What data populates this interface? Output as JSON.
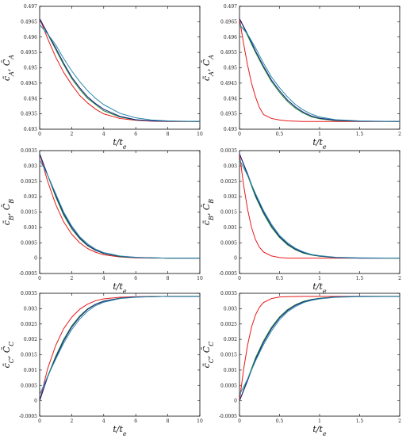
{
  "chart_data": [
    {
      "type": "line",
      "xlabel": "t/t_e",
      "ylabel": "c̄_A, C̄_A",
      "xlim": [
        0,
        10
      ],
      "ylim": [
        0.493,
        0.497
      ],
      "xticks": [
        "0",
        "2",
        "4",
        "6",
        "8",
        "10"
      ],
      "yticks": [
        "0.493",
        "0.4935",
        "0.494",
        "0.4945",
        "0.495",
        "0.4955",
        "0.496",
        "0.4965",
        "0.497"
      ],
      "series": [
        {
          "color": "#e8191a",
          "x": [
            0,
            0.5,
            1,
            1.5,
            2,
            2.5,
            3,
            3.5,
            4,
            5,
            6,
            7,
            8,
            10
          ],
          "values": [
            0.4966,
            0.49595,
            0.49535,
            0.49485,
            0.49445,
            0.4941,
            0.49385,
            0.49365,
            0.4935,
            0.49335,
            0.49329,
            0.49326,
            0.49325,
            0.49325
          ]
        },
        {
          "color": "#1a8c2a",
          "x": [
            0,
            0.5,
            1,
            1.5,
            2,
            2.5,
            3,
            3.5,
            4,
            5,
            6,
            7,
            8,
            10
          ],
          "values": [
            0.4966,
            0.4961,
            0.4956,
            0.4951,
            0.49465,
            0.4943,
            0.494,
            0.4938,
            0.4936,
            0.4934,
            0.4933,
            0.49327,
            0.49326,
            0.49325
          ]
        },
        {
          "color": "#1a1a8c",
          "x": [
            0,
            0.5,
            1,
            1.5,
            2,
            2.5,
            3,
            3.5,
            4,
            5,
            6,
            7,
            8,
            10
          ],
          "values": [
            0.4966,
            0.49612,
            0.49565,
            0.49515,
            0.4947,
            0.49435,
            0.49405,
            0.49383,
            0.49365,
            0.49342,
            0.49331,
            0.49327,
            0.49326,
            0.49325
          ]
        },
        {
          "color": "#2a8aa8",
          "x": [
            0,
            0.5,
            1,
            1.5,
            2,
            2.5,
            3,
            3.5,
            4,
            5,
            6,
            7,
            8,
            10
          ],
          "values": [
            0.4964,
            0.4961,
            0.49575,
            0.4953,
            0.4949,
            0.49455,
            0.49425,
            0.494,
            0.4938,
            0.49352,
            0.49337,
            0.4933,
            0.49327,
            0.49325
          ]
        }
      ]
    },
    {
      "type": "line",
      "xlabel": "t/t_e",
      "ylabel": "c̄_A, C̄_A",
      "xlim": [
        0,
        2
      ],
      "ylim": [
        0.493,
        0.497
      ],
      "xticks": [
        "0",
        "0.5",
        "1",
        "1.5",
        "2"
      ],
      "yticks": [
        "0.493",
        "0.4935",
        "0.494",
        "0.4945",
        "0.495",
        "0.4955",
        "0.496",
        "0.4965",
        "0.497"
      ],
      "series": [
        {
          "color": "#e8191a",
          "x": [
            0,
            0.05,
            0.1,
            0.15,
            0.2,
            0.25,
            0.3,
            0.4,
            0.5,
            0.6,
            0.8,
            1,
            1.5,
            2
          ],
          "values": [
            0.4966,
            0.4958,
            0.4951,
            0.4945,
            0.49405,
            0.4937,
            0.49348,
            0.49335,
            0.4933,
            0.49327,
            0.49325,
            0.49325,
            0.49325,
            0.49325
          ]
        },
        {
          "color": "#1a8c2a",
          "x": [
            0,
            0.1,
            0.2,
            0.3,
            0.4,
            0.5,
            0.6,
            0.7,
            0.8,
            0.9,
            1,
            1.2,
            1.5,
            2
          ],
          "values": [
            0.4966,
            0.49605,
            0.4955,
            0.495,
            0.49455,
            0.4942,
            0.4939,
            0.49368,
            0.49352,
            0.4934,
            0.49334,
            0.49328,
            0.49326,
            0.49325
          ]
        },
        {
          "color": "#1a1a8c",
          "x": [
            0,
            0.1,
            0.2,
            0.3,
            0.4,
            0.5,
            0.6,
            0.7,
            0.8,
            0.9,
            1,
            1.2,
            1.5,
            2
          ],
          "values": [
            0.4966,
            0.4961,
            0.49555,
            0.49505,
            0.4946,
            0.49425,
            0.49395,
            0.49372,
            0.49355,
            0.49343,
            0.49336,
            0.49329,
            0.49326,
            0.49325
          ]
        },
        {
          "color": "#2a8aa8",
          "x": [
            0,
            0.1,
            0.2,
            0.3,
            0.4,
            0.5,
            0.6,
            0.7,
            0.8,
            0.9,
            1,
            1.2,
            1.5,
            2
          ],
          "values": [
            0.4964,
            0.4961,
            0.49565,
            0.49515,
            0.4947,
            0.49435,
            0.49405,
            0.4938,
            0.49362,
            0.49349,
            0.4934,
            0.49331,
            0.49327,
            0.49325
          ]
        }
      ]
    },
    {
      "type": "line",
      "xlabel": "t/t_e",
      "ylabel": "c̄_B, C̄_B",
      "xlim": [
        0,
        10
      ],
      "ylim": [
        -0.0005,
        0.0035
      ],
      "xticks": [
        "0",
        "2",
        "4",
        "6",
        "8",
        "10"
      ],
      "yticks": [
        "-0.0005",
        "0",
        "0.0005",
        "0.001",
        "0.0015",
        "0.002",
        "0.0025",
        "0.003",
        "0.0035"
      ],
      "series": [
        {
          "color": "#e8191a",
          "x": [
            0,
            0.5,
            1,
            1.5,
            2,
            2.5,
            3,
            3.5,
            4,
            5,
            6,
            7,
            8,
            10
          ],
          "values": [
            0.0034,
            0.0025,
            0.00175,
            0.00118,
            0.00078,
            0.0005,
            0.00031,
            0.00019,
            0.00011,
            4e-05,
            1e-05,
            0,
            0,
            0
          ]
        },
        {
          "color": "#1a8c2a",
          "x": [
            0,
            0.5,
            1,
            1.5,
            2,
            2.5,
            3,
            3.5,
            4,
            5,
            6,
            7,
            8,
            10
          ],
          "values": [
            0.0034,
            0.0027,
            0.002,
            0.0014,
            0.00095,
            0.00063,
            0.0004,
            0.00025,
            0.00015,
            5e-05,
            2e-05,
            1e-05,
            0,
            0
          ]
        },
        {
          "color": "#1a1a8c",
          "x": [
            0,
            0.5,
            1,
            1.5,
            2,
            2.5,
            3,
            3.5,
            4,
            5,
            6,
            7,
            8,
            10
          ],
          "values": [
            0.0034,
            0.0027,
            0.00205,
            0.00145,
            0.001,
            0.00066,
            0.00042,
            0.00026,
            0.00016,
            6e-05,
            2e-05,
            1e-05,
            0,
            0
          ]
        },
        {
          "color": "#2a8aa8",
          "x": [
            0,
            0.5,
            1,
            1.5,
            2,
            2.5,
            3,
            3.5,
            4,
            5,
            6,
            7,
            8,
            10
          ],
          "values": [
            0.0032,
            0.0027,
            0.0021,
            0.0015,
            0.00105,
            0.0007,
            0.00046,
            0.00029,
            0.00018,
            7e-05,
            3e-05,
            1e-05,
            0,
            0
          ]
        }
      ]
    },
    {
      "type": "line",
      "xlabel": "t/t_e",
      "ylabel": "c̄_B, C̄_B",
      "xlim": [
        0,
        2
      ],
      "ylim": [
        -0.0005,
        0.0035
      ],
      "xticks": [
        "0",
        "0.5",
        "1",
        "1.5",
        "2"
      ],
      "yticks": [
        "-0.0005",
        "0",
        "0.0005",
        "0.001",
        "0.0015",
        "0.002",
        "0.0025",
        "0.003",
        "0.0035"
      ],
      "series": [
        {
          "color": "#e8191a",
          "x": [
            0,
            0.05,
            0.1,
            0.15,
            0.2,
            0.25,
            0.3,
            0.4,
            0.5,
            0.6,
            0.8,
            1,
            1.5,
            2
          ],
          "values": [
            0.0034,
            0.0024,
            0.0016,
            0.001,
            0.0006,
            0.00035,
            0.0002,
            7e-05,
            2e-05,
            0,
            0,
            0,
            0,
            0
          ]
        },
        {
          "color": "#1a8c2a",
          "x": [
            0,
            0.1,
            0.2,
            0.3,
            0.4,
            0.5,
            0.6,
            0.7,
            0.8,
            0.9,
            1,
            1.2,
            1.5,
            2
          ],
          "values": [
            0.0034,
            0.0027,
            0.002,
            0.00145,
            0.001,
            0.00067,
            0.00043,
            0.00027,
            0.00016,
            0.0001,
            6e-05,
            2e-05,
            0,
            0
          ]
        },
        {
          "color": "#1a1a8c",
          "x": [
            0,
            0.1,
            0.2,
            0.3,
            0.4,
            0.5,
            0.6,
            0.7,
            0.8,
            0.9,
            1,
            1.2,
            1.5,
            2
          ],
          "values": [
            0.0034,
            0.00275,
            0.00205,
            0.0015,
            0.00105,
            0.0007,
            0.00046,
            0.00029,
            0.00018,
            0.00011,
            7e-05,
            2e-05,
            0,
            0
          ]
        },
        {
          "color": "#2a8aa8",
          "x": [
            0,
            0.1,
            0.2,
            0.3,
            0.4,
            0.5,
            0.6,
            0.7,
            0.8,
            0.9,
            1,
            1.2,
            1.5,
            2
          ],
          "values": [
            0.0032,
            0.0027,
            0.0021,
            0.00155,
            0.0011,
            0.00074,
            0.0005,
            0.00032,
            0.0002,
            0.00012,
            8e-05,
            3e-05,
            1e-05,
            0
          ]
        }
      ]
    },
    {
      "type": "line",
      "xlabel": "t/t_e",
      "ylabel": "c̄_C, C̄_C",
      "xlim": [
        0,
        10
      ],
      "ylim": [
        -0.0005,
        0.0035
      ],
      "xticks": [
        "0",
        "2",
        "4",
        "6",
        "8",
        "10"
      ],
      "yticks": [
        "-0.0005",
        "0",
        "0.0005",
        "0.001",
        "0.0015",
        "0.002",
        "0.0025",
        "0.003",
        "0.0035"
      ],
      "series": [
        {
          "color": "#e8191a",
          "x": [
            0,
            0.5,
            1,
            1.5,
            2,
            2.5,
            3,
            3.5,
            4,
            5,
            6,
            7,
            8,
            10
          ],
          "values": [
            0,
            0.00105,
            0.0018,
            0.00235,
            0.00272,
            0.00298,
            0.00315,
            0.00326,
            0.00332,
            0.00337,
            0.00339,
            0.0034,
            0.0034,
            0.0034
          ]
        },
        {
          "color": "#1a8c2a",
          "x": [
            0,
            0.5,
            1,
            1.5,
            2,
            2.5,
            3,
            3.5,
            4,
            5,
            6,
            7,
            8,
            10
          ],
          "values": [
            0,
            0.0008,
            0.00145,
            0.002,
            0.00244,
            0.00276,
            0.003,
            0.00315,
            0.00325,
            0.00334,
            0.00338,
            0.00339,
            0.0034,
            0.0034
          ]
        },
        {
          "color": "#1a1a8c",
          "x": [
            0,
            0.5,
            1,
            1.5,
            2,
            2.5,
            3,
            3.5,
            4,
            5,
            6,
            7,
            8,
            10
          ],
          "values": [
            0,
            0.00078,
            0.0014,
            0.00195,
            0.0024,
            0.00273,
            0.00298,
            0.00314,
            0.00324,
            0.00334,
            0.00338,
            0.00339,
            0.0034,
            0.0034
          ]
        },
        {
          "color": "#2a8aa8",
          "x": [
            0,
            0.5,
            1,
            1.5,
            2,
            2.5,
            3,
            3.5,
            4,
            5,
            6,
            7,
            8,
            10
          ],
          "values": [
            0.0002,
            0.0008,
            0.00135,
            0.00188,
            0.00232,
            0.00266,
            0.00292,
            0.0031,
            0.00321,
            0.00333,
            0.00337,
            0.00339,
            0.0034,
            0.0034
          ]
        }
      ]
    },
    {
      "type": "line",
      "xlabel": "t/t_e",
      "ylabel": "c̄_C, C̄_C",
      "xlim": [
        0,
        2
      ],
      "ylim": [
        -0.0005,
        0.0035
      ],
      "xticks": [
        "0",
        "0.5",
        "1",
        "1.5",
        "2"
      ],
      "yticks": [
        "-0.0005",
        "0",
        "0.0005",
        "0.001",
        "0.0015",
        "0.002",
        "0.0025",
        "0.003",
        "0.0035"
      ],
      "series": [
        {
          "color": "#e8191a",
          "x": [
            0,
            0.05,
            0.1,
            0.15,
            0.2,
            0.25,
            0.3,
            0.4,
            0.5,
            0.6,
            0.8,
            1,
            1.5,
            2
          ],
          "values": [
            0,
            0.001,
            0.0018,
            0.0024,
            0.0028,
            0.00305,
            0.0032,
            0.00333,
            0.00338,
            0.00339,
            0.0034,
            0.0034,
            0.0034,
            0.0034
          ]
        },
        {
          "color": "#1a8c2a",
          "x": [
            0,
            0.1,
            0.2,
            0.3,
            0.4,
            0.5,
            0.6,
            0.7,
            0.8,
            0.9,
            1,
            1.2,
            1.5,
            2
          ],
          "values": [
            0,
            0.0007,
            0.0014,
            0.00195,
            0.0024,
            0.00273,
            0.00297,
            0.00313,
            0.00324,
            0.0033,
            0.00334,
            0.00338,
            0.0034,
            0.0034
          ]
        },
        {
          "color": "#1a1a8c",
          "x": [
            0,
            0.1,
            0.2,
            0.3,
            0.4,
            0.5,
            0.6,
            0.7,
            0.8,
            0.9,
            1,
            1.2,
            1.5,
            2
          ],
          "values": [
            0,
            0.00065,
            0.00135,
            0.0019,
            0.00235,
            0.0027,
            0.00294,
            0.00311,
            0.00322,
            0.00329,
            0.00333,
            0.00338,
            0.0034,
            0.0034
          ]
        },
        {
          "color": "#2a8aa8",
          "x": [
            0,
            0.1,
            0.2,
            0.3,
            0.4,
            0.5,
            0.6,
            0.7,
            0.8,
            0.9,
            1,
            1.2,
            1.5,
            2
          ],
          "values": [
            0.0002,
            0.0007,
            0.0013,
            0.00183,
            0.00228,
            0.00264,
            0.0029,
            0.00307,
            0.0032,
            0.00327,
            0.00332,
            0.00337,
            0.00339,
            0.0034
          ]
        }
      ]
    }
  ]
}
